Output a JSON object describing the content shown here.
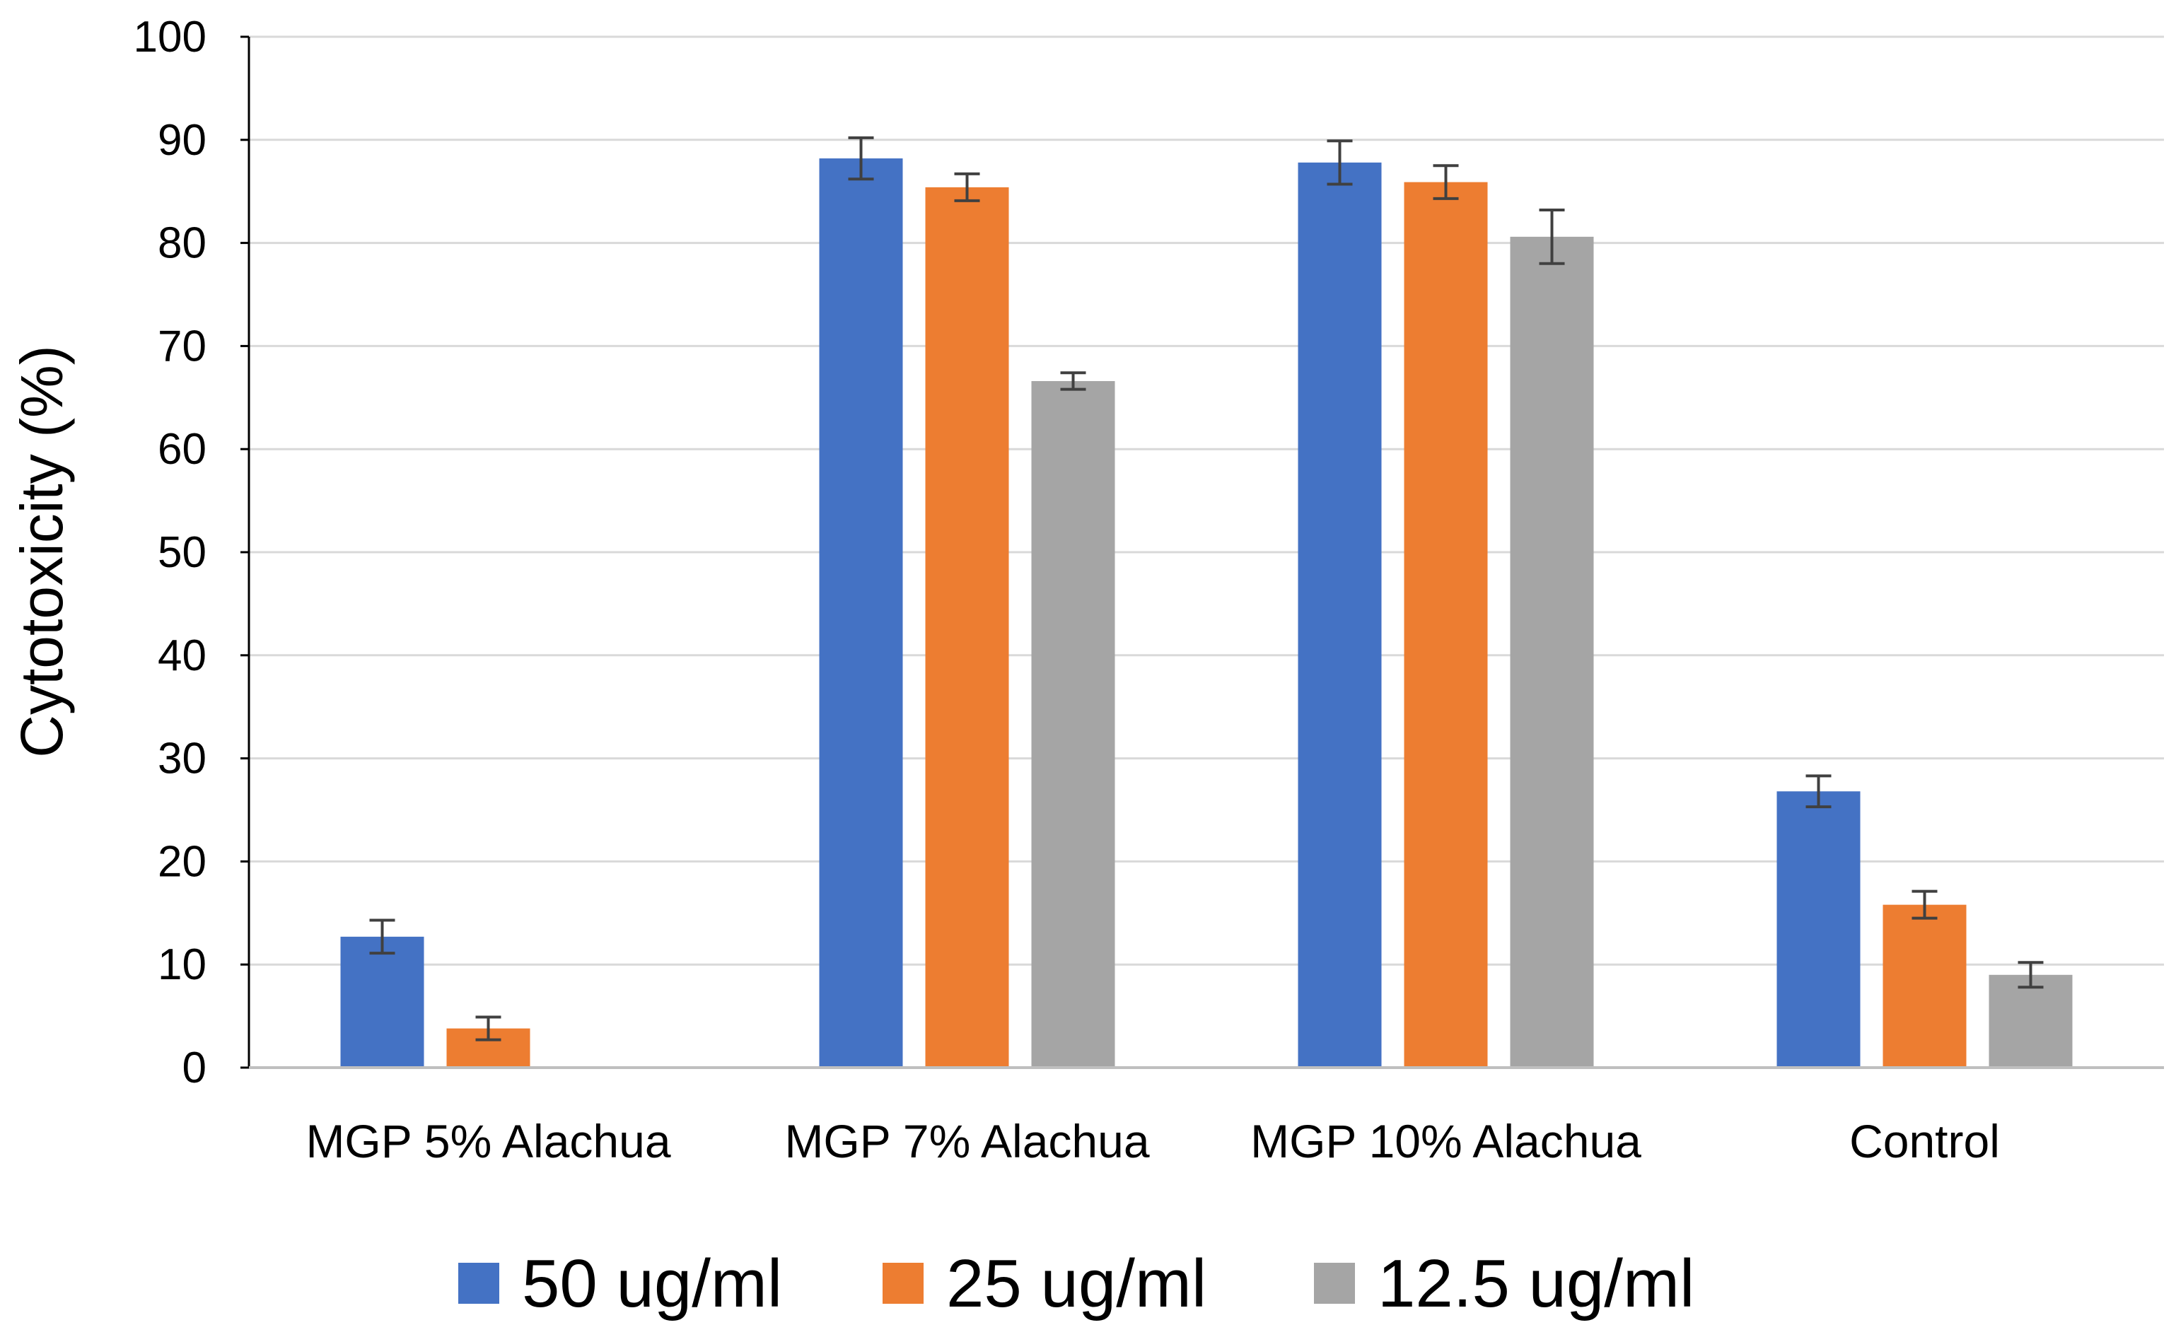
{
  "chart_data": {
    "type": "bar",
    "title": "",
    "xlabel": "",
    "ylabel": "Cytotoxicity (%)",
    "ylim": [
      0,
      100
    ],
    "yticks": [
      0,
      10,
      20,
      30,
      40,
      50,
      60,
      70,
      80,
      90,
      100
    ],
    "grid": true,
    "legend_position": "bottom",
    "categories": [
      "MGP 5% Alachua",
      "MGP 7% Alachua",
      "MGP 10% Alachua",
      "Control"
    ],
    "series": [
      {
        "name": "50 ug/ml",
        "color": "#4472C4",
        "values": [
          12.7,
          88.2,
          87.8,
          26.8
        ],
        "errors": [
          1.6,
          2.0,
          2.1,
          1.5
        ]
      },
      {
        "name": "25 ug/ml",
        "color": "#ED7D31",
        "values": [
          3.8,
          85.4,
          85.9,
          15.8
        ],
        "errors": [
          1.1,
          1.3,
          1.6,
          1.3
        ]
      },
      {
        "name": "12.5 ug/ml",
        "color": "#A5A5A5",
        "values": [
          null,
          66.6,
          80.6,
          9.0
        ],
        "errors": [
          null,
          0.8,
          2.6,
          1.2
        ]
      }
    ]
  }
}
